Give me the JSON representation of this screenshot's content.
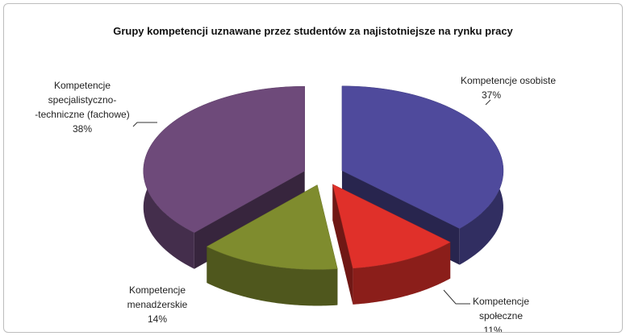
{
  "chart_data": {
    "type": "pie3d",
    "title": "Grupy kompetencji uznawane przez studentów za najistotniejsze na rynku pracy",
    "categories": [
      "Kompetencje osobiste",
      "Kompetencje\nspołeczne",
      "Kompetencje\nmenadżerskie",
      "Kompetencje\nspecjalistyczno-\n-techniczne (fachowe)"
    ],
    "values": [
      37,
      11,
      14,
      38
    ],
    "value_labels": [
      "37%",
      "11%",
      "14%",
      "38%"
    ],
    "colors": [
      "#4f4a9c",
      "#e0302a",
      "#7f8c2e",
      "#6e4a7a"
    ]
  }
}
